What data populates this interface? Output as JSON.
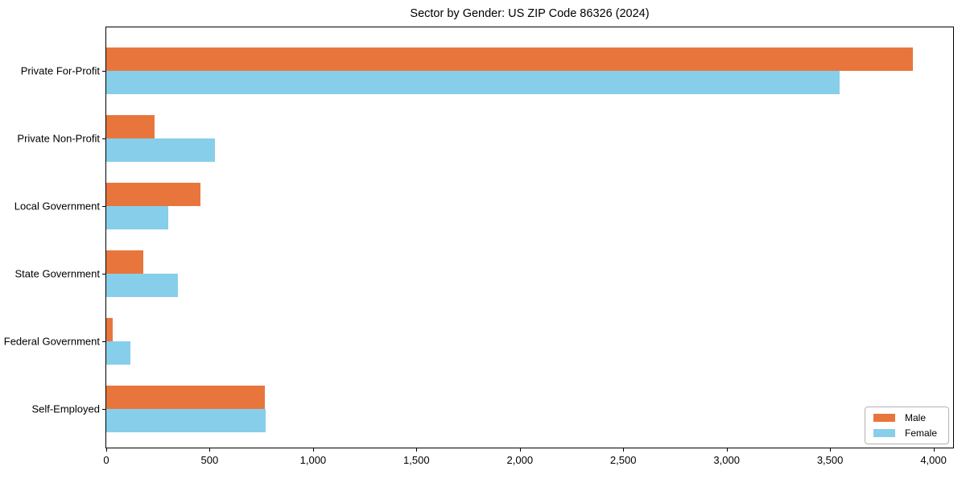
{
  "figure": {
    "title": "Sector by Gender: US ZIP Code 86326 (2024)"
  },
  "chart_data": {
    "type": "bar",
    "orientation": "horizontal",
    "title": "Sector by Gender: US ZIP Code 86326 (2024)",
    "categories": [
      "Private For-Profit",
      "Private Non-Profit",
      "Local Government",
      "State Government",
      "Federal Government",
      "Self-Employed"
    ],
    "series": [
      {
        "name": "Male",
        "color": "#e8763c",
        "values": [
          3900,
          235,
          455,
          180,
          30,
          765
        ]
      },
      {
        "name": "Female",
        "color": "#87ceeb",
        "values": [
          3545,
          525,
          300,
          345,
          115,
          770
        ]
      }
    ],
    "xlabel": "",
    "ylabel": "",
    "xlim": [
      0,
      4095
    ],
    "xticks": [
      0,
      500,
      1000,
      1500,
      2000,
      2500,
      3000,
      3500,
      4000
    ],
    "xtick_labels": [
      "0",
      "500",
      "1,000",
      "1,500",
      "2,000",
      "2,500",
      "3,000",
      "3,500",
      "4,000"
    ],
    "grid": false,
    "legend": {
      "position": "lower right",
      "entries": [
        "Male",
        "Female"
      ]
    }
  }
}
